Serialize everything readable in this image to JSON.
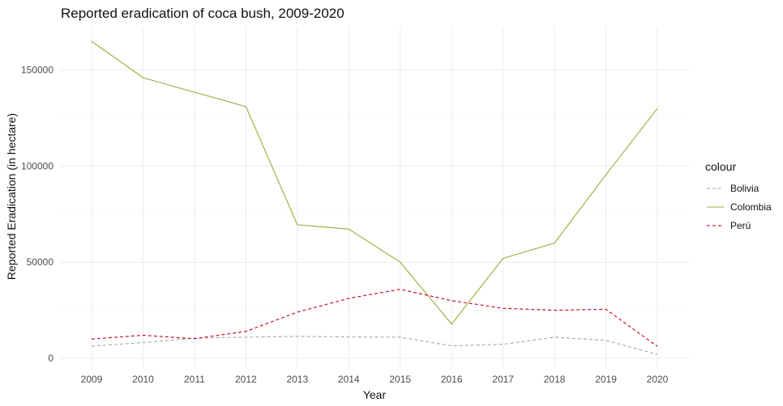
{
  "chart_data": {
    "type": "line",
    "title": "Reported eradication of coca bush, 2009-2020",
    "xlabel": "Year",
    "ylabel": "Reported Eradication (in hectare)",
    "x": [
      2009,
      2010,
      2011,
      2012,
      2013,
      2014,
      2015,
      2016,
      2017,
      2018,
      2019,
      2020
    ],
    "xlim": [
      2009,
      2020
    ],
    "ylim": [
      0,
      165000
    ],
    "yticks": [
      0,
      50000,
      100000,
      150000
    ],
    "ytick_labels": [
      "0",
      "50000",
      "100000",
      "150000"
    ],
    "grid": true,
    "legend": {
      "title": "colour",
      "position": "right"
    },
    "series": [
      {
        "name": "Bolivia",
        "color": "#a6a6a6",
        "dash": "dashed",
        "values": [
          6300,
          8200,
          10500,
          11000,
          11400,
          11100,
          11000,
          6500,
          7300,
          11000,
          9300,
          2000
        ]
      },
      {
        "name": "Colombia",
        "color": "#9aac3a",
        "dash": "solid",
        "values": [
          165000,
          146000,
          138500,
          131000,
          69500,
          67200,
          50000,
          17800,
          52000,
          60000,
          95500,
          130000
        ]
      },
      {
        "name": "Perú",
        "color": "#c4001b",
        "dash": "dashed",
        "values": [
          10000,
          12000,
          10200,
          14000,
          24000,
          31200,
          35900,
          30000,
          26000,
          25000,
          25500,
          6200
        ]
      }
    ]
  }
}
